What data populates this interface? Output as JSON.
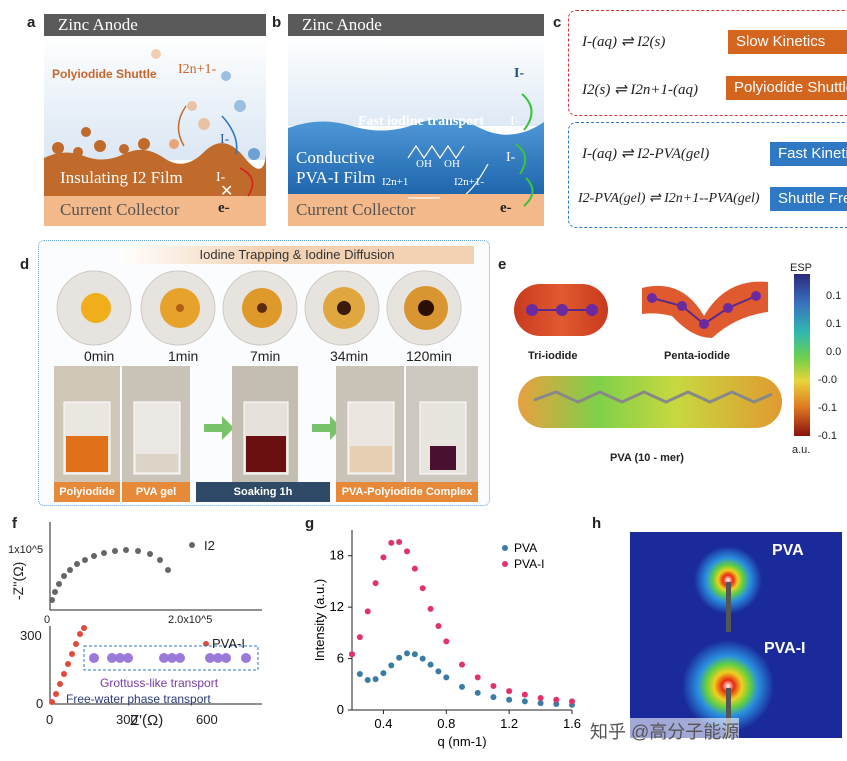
{
  "panels": {
    "a": "a",
    "b": "b",
    "c": "c",
    "d": "d",
    "e": "e",
    "f": "f",
    "g": "g",
    "h": "h"
  },
  "panel_a": {
    "header": "Zinc Anode",
    "shuttle_label": "Polyiodide Shuttle",
    "species": "I2n+1-",
    "iodide": "I-",
    "film": "Insulating I2 Film",
    "iodide_blocked": "I-",
    "collector": "Current Collector",
    "electron": "e-"
  },
  "panel_b": {
    "header": "Zinc Anode",
    "iodide_top": "I-",
    "fast": "Fast iodine transport",
    "iodide_mid": "I-",
    "iodide_low": "I-",
    "film_line1": "Conductive",
    "film_line2": "PVA-I Film",
    "oh1": "OH",
    "oh2": "OH",
    "sp1": "I2n+1",
    "sp2": "I2n+1-",
    "collector": "Current Collector",
    "electron": "e-"
  },
  "panel_c": {
    "eq1": "I-(aq) ⇌ I2(s)",
    "b1": "Slow Kinetics",
    "eq2": "I2(s) ⇌ I2n+1-(aq)",
    "b2": "Polyiodide Shuttle",
    "eq3": "I-(aq) ⇌ I2-PVA(gel)",
    "b3": "Fast Kinetics",
    "eq4": "I2-PVA(gel) ⇌ I2n+1--PVA(gel)",
    "b4": "Shuttle Free",
    "colors": {
      "red_badge": "#d4651e",
      "blue_badge": "#2f79c4"
    }
  },
  "panel_d": {
    "title": "Iodine Trapping & Iodine Diffusion",
    "times": [
      "0min",
      "1min",
      "7min",
      "34min",
      "120min"
    ],
    "captions": {
      "polyiodide": "Polyiodide",
      "pva_gel": "PVA gel",
      "soaking": "Soaking 1h",
      "complex": "PVA-Polyiodide Complex"
    }
  },
  "panel_e": {
    "tri": "Tri-iodide",
    "penta": "Penta-iodide",
    "pva": "PVA (10 - mer)",
    "esp": "ESP",
    "unit": "a.u.",
    "ticks": [
      "0.1",
      "0.1",
      "0.0",
      "-0.0",
      "-0.1",
      "-0.1"
    ]
  },
  "panel_f": {
    "ylabel": "-Z''(Ω)",
    "xlabel": "Z'(Ω)",
    "top_ytick": "1x10^5",
    "top_xticks": [
      "0",
      "2.0x10^5"
    ],
    "yticks": [
      "0",
      "300"
    ],
    "xticks": [
      "0",
      "300",
      "600"
    ],
    "series1": "I2",
    "series2": "PVA-I",
    "grottuss": "Grottuss-like transport",
    "freewater": "Free-water phase transport"
  },
  "panel_h": {
    "top": "PVA",
    "bottom": "PVA-I"
  },
  "watermark": "知乎 @高分子能源",
  "chart_data": {
    "type": "scatter",
    "xlabel": "q (nm-1)",
    "ylabel": "Intensity (a.u.)",
    "xlim": [
      0.2,
      1.6
    ],
    "ylim": [
      0,
      21
    ],
    "xticks": [
      "0.4",
      "0.8",
      "1.2",
      "1.6"
    ],
    "yticks": [
      "0",
      "6",
      "12",
      "18"
    ],
    "series": [
      {
        "name": "PVA",
        "color": "#3a7ca5",
        "x": [
          0.2,
          0.25,
          0.3,
          0.35,
          0.4,
          0.45,
          0.5,
          0.55,
          0.6,
          0.65,
          0.7,
          0.75,
          0.8,
          0.9,
          1.0,
          1.1,
          1.2,
          1.3,
          1.4,
          1.5,
          1.6
        ],
        "y": [
          6.5,
          4.2,
          3.5,
          3.6,
          4.3,
          5.2,
          6.1,
          6.6,
          6.5,
          6.0,
          5.3,
          4.5,
          3.8,
          2.7,
          2.0,
          1.5,
          1.2,
          1.0,
          0.8,
          0.7,
          0.6
        ]
      },
      {
        "name": "PVA-I",
        "color": "#e0336a",
        "x": [
          0.2,
          0.25,
          0.3,
          0.35,
          0.4,
          0.45,
          0.5,
          0.55,
          0.6,
          0.65,
          0.7,
          0.75,
          0.8,
          0.9,
          1.0,
          1.1,
          1.2,
          1.3,
          1.4,
          1.5,
          1.6
        ],
        "y": [
          6.5,
          8.5,
          11.5,
          14.8,
          17.8,
          19.5,
          19.6,
          18.5,
          16.5,
          14.2,
          11.8,
          9.8,
          8.0,
          5.3,
          3.8,
          2.8,
          2.2,
          1.8,
          1.4,
          1.2,
          1.0
        ]
      }
    ]
  }
}
